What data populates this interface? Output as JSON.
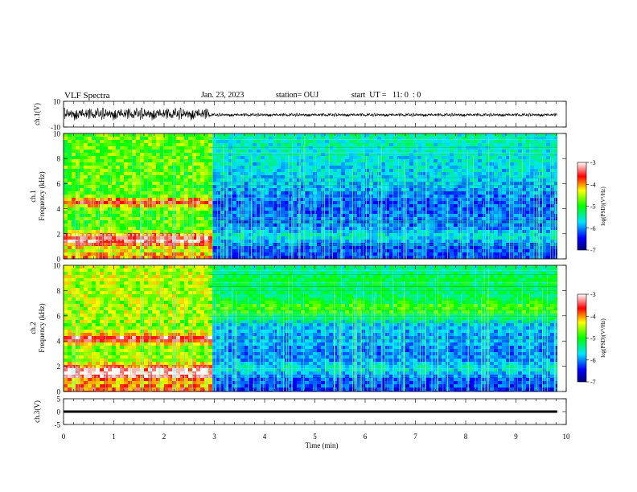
{
  "header": {
    "title": "VLF Spectra",
    "date": "Jan. 23, 2023",
    "station": "station= OUJ",
    "start_ut": "start  UT =   11: 0  : 0"
  },
  "chart_data": [
    {
      "type": "line",
      "panel": "ch1-waveform",
      "ylabel": "ch.1(V)",
      "ylim": [
        -10,
        10
      ],
      "y_ticks": [
        "10",
        "-10"
      ],
      "xlim": [
        0,
        10
      ],
      "series": [
        {
          "segment": "0-2.9 min",
          "amplitude_approx_V": [
            -4,
            4
          ]
        },
        {
          "segment": "2.9-9.8 min",
          "amplitude_approx_V": [
            -1.5,
            1.5
          ]
        }
      ]
    },
    {
      "type": "heatmap",
      "panel": "ch1-spectrogram",
      "ylabel": "ch.1 Frequency (kHz)",
      "ylim": [
        0,
        10
      ],
      "y_ticks": [
        "0",
        "2",
        "4",
        "6",
        "8",
        "10"
      ],
      "xlim": [
        0,
        10
      ],
      "colorbar": {
        "label": "log(PSD)(V²/Hz)",
        "range": [
          -7,
          -3
        ],
        "ticks": [
          "-3",
          "-4",
          "-5",
          "-6",
          "-7"
        ]
      },
      "notes": "Strong broadband noise 0-2.9 min (bands near 1.5 kHz and 4.5 kHz), quieter after 2.9 min"
    },
    {
      "type": "heatmap",
      "panel": "ch2-spectrogram",
      "ylabel": "ch.2 Frequency (kHz)",
      "ylim": [
        0,
        10
      ],
      "y_ticks": [
        "0",
        "2",
        "4",
        "6",
        "8",
        "10"
      ],
      "xlim": [
        0,
        10
      ],
      "colorbar": {
        "label": "log(PSD)(V²/Hz)",
        "range": [
          -7,
          -3
        ],
        "ticks": [
          "-3",
          "-4",
          "-5",
          "-6",
          "-7"
        ]
      },
      "notes": "Strong broadband noise 0-2.9 min (bands near 1.5 kHz and 4.2 kHz), quieter after 2.9 min"
    },
    {
      "type": "line",
      "panel": "ch3-waveform",
      "ylabel": "ch.3(V)",
      "ylim": [
        -5,
        5
      ],
      "y_ticks": [
        "5",
        "0",
        "-5"
      ],
      "xlim": [
        0,
        10
      ],
      "series": [
        {
          "segment": "0-9.8 min",
          "value_approx_V": 0
        }
      ]
    }
  ],
  "x_axis": {
    "label": "Time (min)",
    "ticks": [
      "0",
      "1",
      "2",
      "3",
      "4",
      "5",
      "6",
      "7",
      "8",
      "9",
      "10"
    ]
  }
}
